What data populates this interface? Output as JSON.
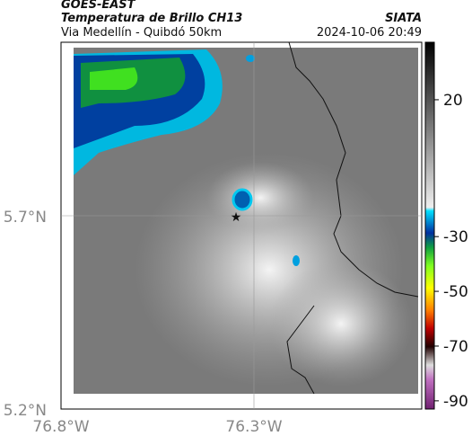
{
  "header": {
    "title": "GOES-EAST",
    "subtitle": "Temperatura de Brillo CH13",
    "route": "Via Medellín - Quibdó 50km",
    "source": "SIATA",
    "datetime": "2024-10-06 20:49"
  },
  "axes": {
    "x_labels": [
      "76.8°W",
      "76.3°W"
    ],
    "y_labels": [
      "5.7°N",
      "5.2°N"
    ]
  },
  "colorbar": {
    "range": [
      -93,
      41
    ],
    "ticks": [
      20,
      -30,
      -50,
      -70,
      -90
    ]
  }
}
